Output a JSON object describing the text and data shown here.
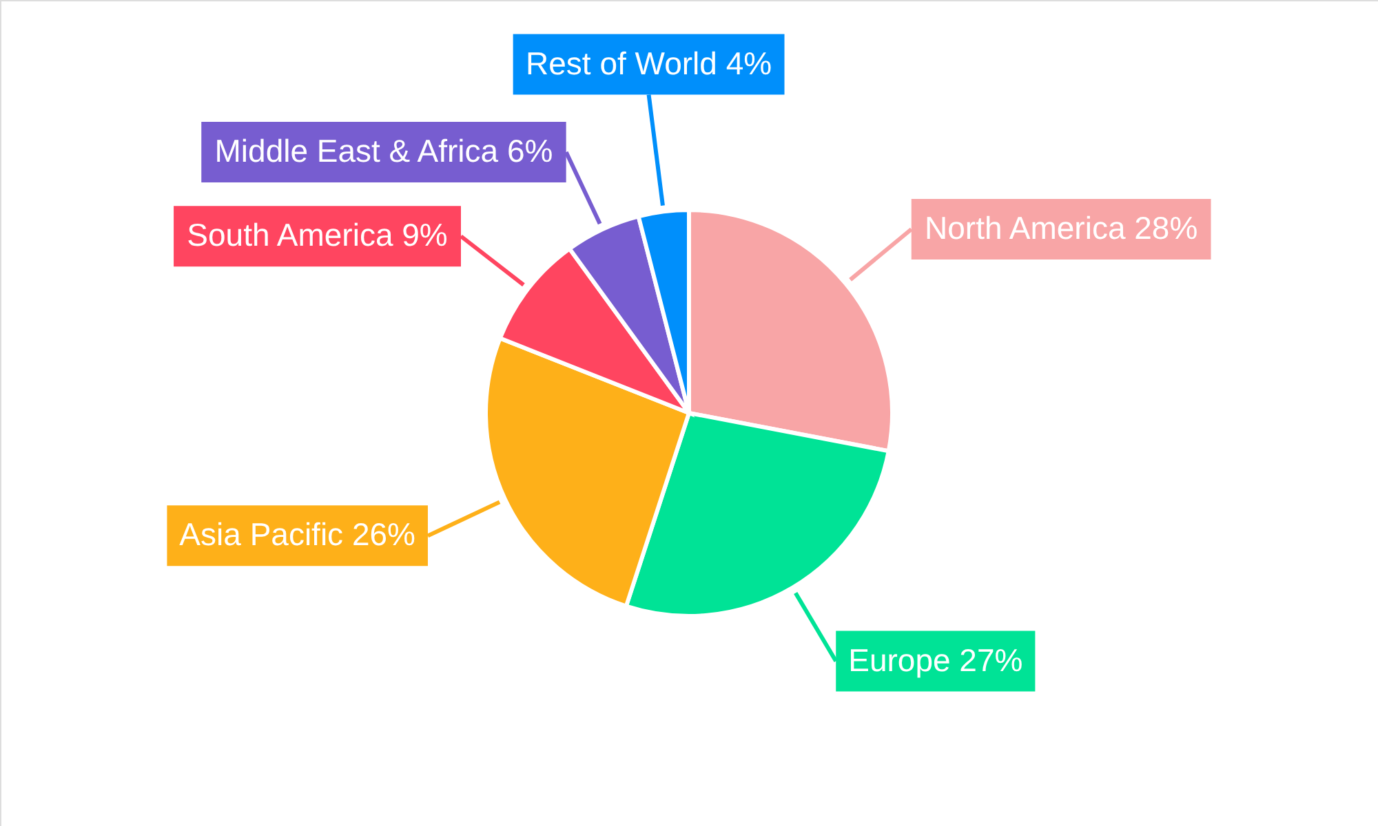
{
  "chart_data": {
    "type": "pie",
    "categories": [
      "North America",
      "Europe",
      "Asia Pacific",
      "South America",
      "Middle East & Africa",
      "Rest of World"
    ],
    "values": [
      28,
      27,
      26,
      9,
      6,
      4
    ],
    "value_labels": [
      "28%",
      "27%",
      "26%",
      "9%",
      "6%",
      "4%"
    ],
    "colors": [
      "#f8a5a6",
      "#00e396",
      "#feb019",
      "#ff4560",
      "#775dd0",
      "#008ffb"
    ]
  }
}
